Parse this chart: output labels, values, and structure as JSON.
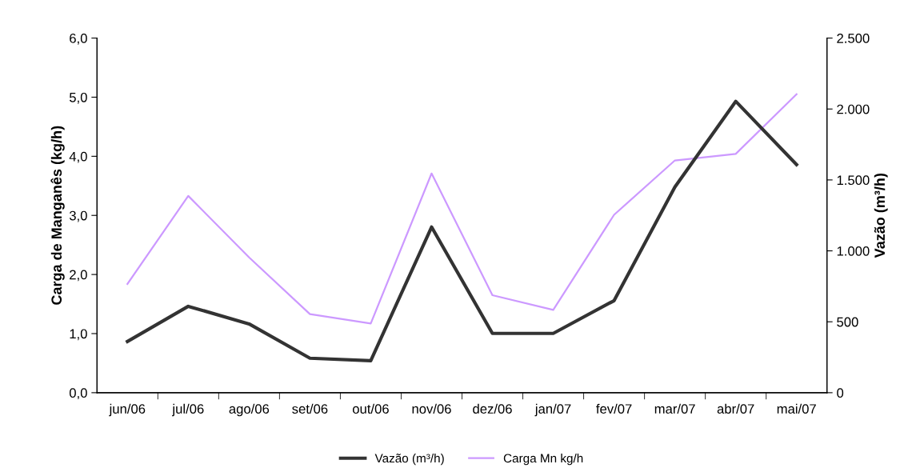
{
  "chart_data": {
    "type": "line",
    "categories": [
      "jun/06",
      "jul/06",
      "ago/06",
      "set/06",
      "out/06",
      "nov/06",
      "dez/06",
      "jan/07",
      "fev/07",
      "mar/07",
      "abr/07",
      "mai/07"
    ],
    "series": [
      {
        "name": "Vazão (m³/h)",
        "color": "#333333",
        "axis": "y2",
        "values": [
          361,
          609,
          485,
          243,
          226,
          1168,
          418,
          418,
          649,
          1450,
          2054,
          1608
        ]
      },
      {
        "name": "Carga Mn kg/h",
        "color": "#cc99ff",
        "values": [
          1.84,
          3.33,
          2.29,
          1.33,
          1.17,
          3.71,
          1.65,
          1.4,
          3.01,
          3.93,
          4.04,
          5.05
        ]
      }
    ],
    "ylabel": "Carga de Manganês (kg/h)",
    "y2label": "Vazão (m³/h)",
    "ylim": [
      0,
      6
    ],
    "yticks": [
      {
        "value": 0,
        "label": "0,0"
      },
      {
        "value": 1,
        "label": "1,0"
      },
      {
        "value": 2,
        "label": "2,0"
      },
      {
        "value": 3,
        "label": "3,0"
      },
      {
        "value": 4,
        "label": "4,0"
      },
      {
        "value": 5,
        "label": "5,0"
      },
      {
        "value": 6,
        "label": "6,0"
      }
    ],
    "y2lim": [
      0,
      2500
    ],
    "y2ticks": [
      0,
      500,
      {
        "value": 1000,
        "label": "1.000"
      },
      {
        "value": 1500,
        "label": "1.500"
      },
      {
        "value": 2000,
        "label": "2.000"
      },
      {
        "value": 2500,
        "label": "2.500"
      }
    ],
    "grid": false,
    "legend": "bottom",
    "marker": "none",
    "line_style": "solid"
  }
}
